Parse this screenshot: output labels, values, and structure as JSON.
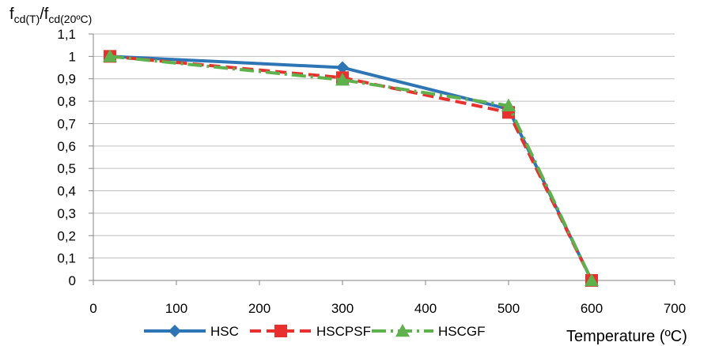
{
  "chart_data": {
    "type": "line",
    "ylabel_parts": [
      "f",
      "cd(T)",
      "/f",
      "cd(20ºC)"
    ],
    "xlabel": "Temperature (ºC)",
    "xlim": [
      0,
      700
    ],
    "ylim": [
      0,
      1.1
    ],
    "x_ticks": [
      "0",
      "100",
      "200",
      "300",
      "400",
      "500",
      "600",
      "700"
    ],
    "y_ticks": [
      "0",
      "0,1",
      "0,2",
      "0,3",
      "0,4",
      "0,5",
      "0,6",
      "0,7",
      "0,8",
      "0,9",
      "1",
      "1,1"
    ],
    "grid": "horizontal",
    "legend_position": "bottom",
    "series": [
      {
        "name": "HSC",
        "x": [
          20,
          300,
          500,
          600
        ],
        "values": [
          1.0,
          0.95,
          0.765,
          0.0
        ],
        "color": "#2E75B6",
        "marker": "diamond",
        "dash": "solid"
      },
      {
        "name": "HSCPSF",
        "x": [
          20,
          300,
          500,
          600
        ],
        "values": [
          1.0,
          0.905,
          0.75,
          0.0
        ],
        "color": "#E8312F",
        "marker": "square",
        "dash": "dashed"
      },
      {
        "name": "HSCGF",
        "x": [
          20,
          300,
          500,
          600
        ],
        "values": [
          1.0,
          0.895,
          0.78,
          0.0
        ],
        "color": "#5FB14E",
        "marker": "triangle",
        "dash": "dashdot"
      }
    ]
  }
}
